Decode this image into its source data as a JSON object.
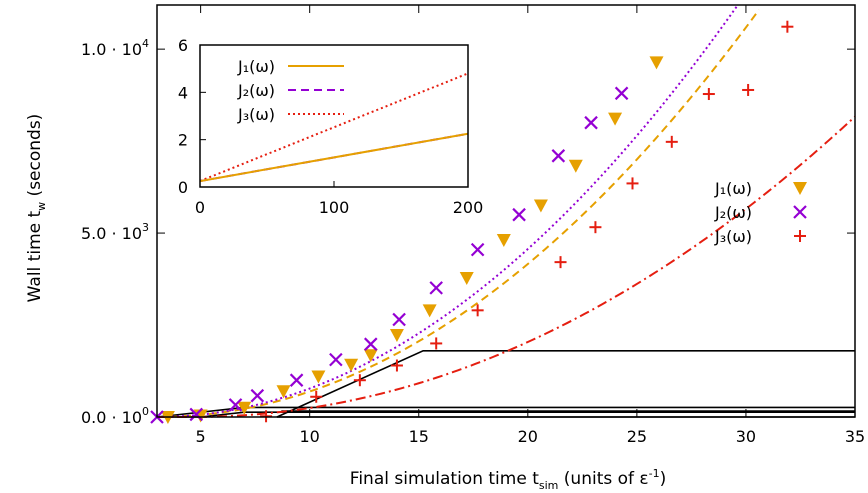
{
  "chart_data": {
    "type": "scatter",
    "xlabel": "Final simulation time t",
    "xlabel_sub": "sim",
    "xlabel_tail": " (units of ε",
    "xlabel_sup": "-1",
    "xlabel_end": ")",
    "ylabel": "Wall time t",
    "ylabel_sub": "w",
    "ylabel_tail": " (seconds)",
    "xlim": [
      3,
      35
    ],
    "ylim": [
      0,
      11200
    ],
    "x_ticks": [
      5,
      10,
      15,
      20,
      25,
      30,
      35
    ],
    "y_ticks": [
      {
        "value": 0,
        "mant": "0.0 · 10",
        "exp": "0"
      },
      {
        "value": 5000,
        "mant": "5.0 · 10",
        "exp": "3"
      },
      {
        "value": 10000,
        "mant": "1.0 · 10",
        "exp": "4"
      }
    ],
    "legend_position": "right",
    "series": [
      {
        "name": "J₁(ω)",
        "color": "#e6a000",
        "marker": "triangle-down",
        "line": "dashed",
        "points": [
          [
            3.5,
            0
          ],
          [
            5,
            40
          ],
          [
            7,
            250
          ],
          [
            8.8,
            700
          ],
          [
            10.4,
            1100
          ],
          [
            11.9,
            1420
          ],
          [
            12.8,
            1680
          ],
          [
            14,
            2230
          ],
          [
            15.5,
            2900
          ],
          [
            17.2,
            3780
          ],
          [
            18.9,
            4810
          ],
          [
            20.6,
            5750
          ],
          [
            22.2,
            6830
          ],
          [
            24,
            8110
          ],
          [
            25.9,
            9640
          ]
        ]
      },
      {
        "name": "J₂(ω)",
        "color": "#9400d3",
        "marker": "x",
        "line": "dotted",
        "points": [
          [
            3,
            0
          ],
          [
            4.8,
            70
          ],
          [
            6.6,
            330
          ],
          [
            7.6,
            580
          ],
          [
            9.4,
            1000
          ],
          [
            11.2,
            1560
          ],
          [
            12.8,
            1980
          ],
          [
            14.1,
            2650
          ],
          [
            15.8,
            3510
          ],
          [
            17.7,
            4550
          ],
          [
            19.6,
            5500
          ],
          [
            21.4,
            7100
          ],
          [
            22.9,
            8000
          ],
          [
            24.3,
            8800
          ]
        ]
      },
      {
        "name": "J₃(ω)",
        "color": "#e51e10",
        "marker": "plus",
        "line": "dashdot",
        "points": [
          [
            8,
            20
          ],
          [
            10.3,
            550
          ],
          [
            12.3,
            1000
          ],
          [
            14,
            1400
          ],
          [
            15.8,
            2000
          ],
          [
            17.7,
            2900
          ],
          [
            21.5,
            4210
          ],
          [
            23.1,
            5160
          ],
          [
            24.8,
            6350
          ],
          [
            26.6,
            7480
          ],
          [
            28.3,
            8780
          ],
          [
            30.1,
            8890
          ],
          [
            31.9,
            10610
          ]
        ]
      }
    ],
    "inset": {
      "xlim": [
        0,
        200
      ],
      "ylim": [
        0,
        6
      ],
      "x_ticks": [
        0,
        100,
        200
      ],
      "y_ticks": [
        0,
        2,
        4,
        6
      ],
      "series": [
        {
          "name": "J₁(ω)",
          "color": "#e6a000",
          "style": "solid",
          "points": [
            [
              0,
              0.25
            ],
            [
              200,
              2.25
            ]
          ]
        },
        {
          "name": "J₂(ω)",
          "color": "#9400d3",
          "style": "dashed",
          "points": [
            [
              0,
              0.25
            ],
            [
              200,
              2.25
            ]
          ]
        },
        {
          "name": "J₃(ω)",
          "color": "#e51e10",
          "style": "dotted",
          "points": [
            [
              0,
              0.25
            ],
            [
              200,
              4.8
            ]
          ]
        }
      ]
    }
  }
}
